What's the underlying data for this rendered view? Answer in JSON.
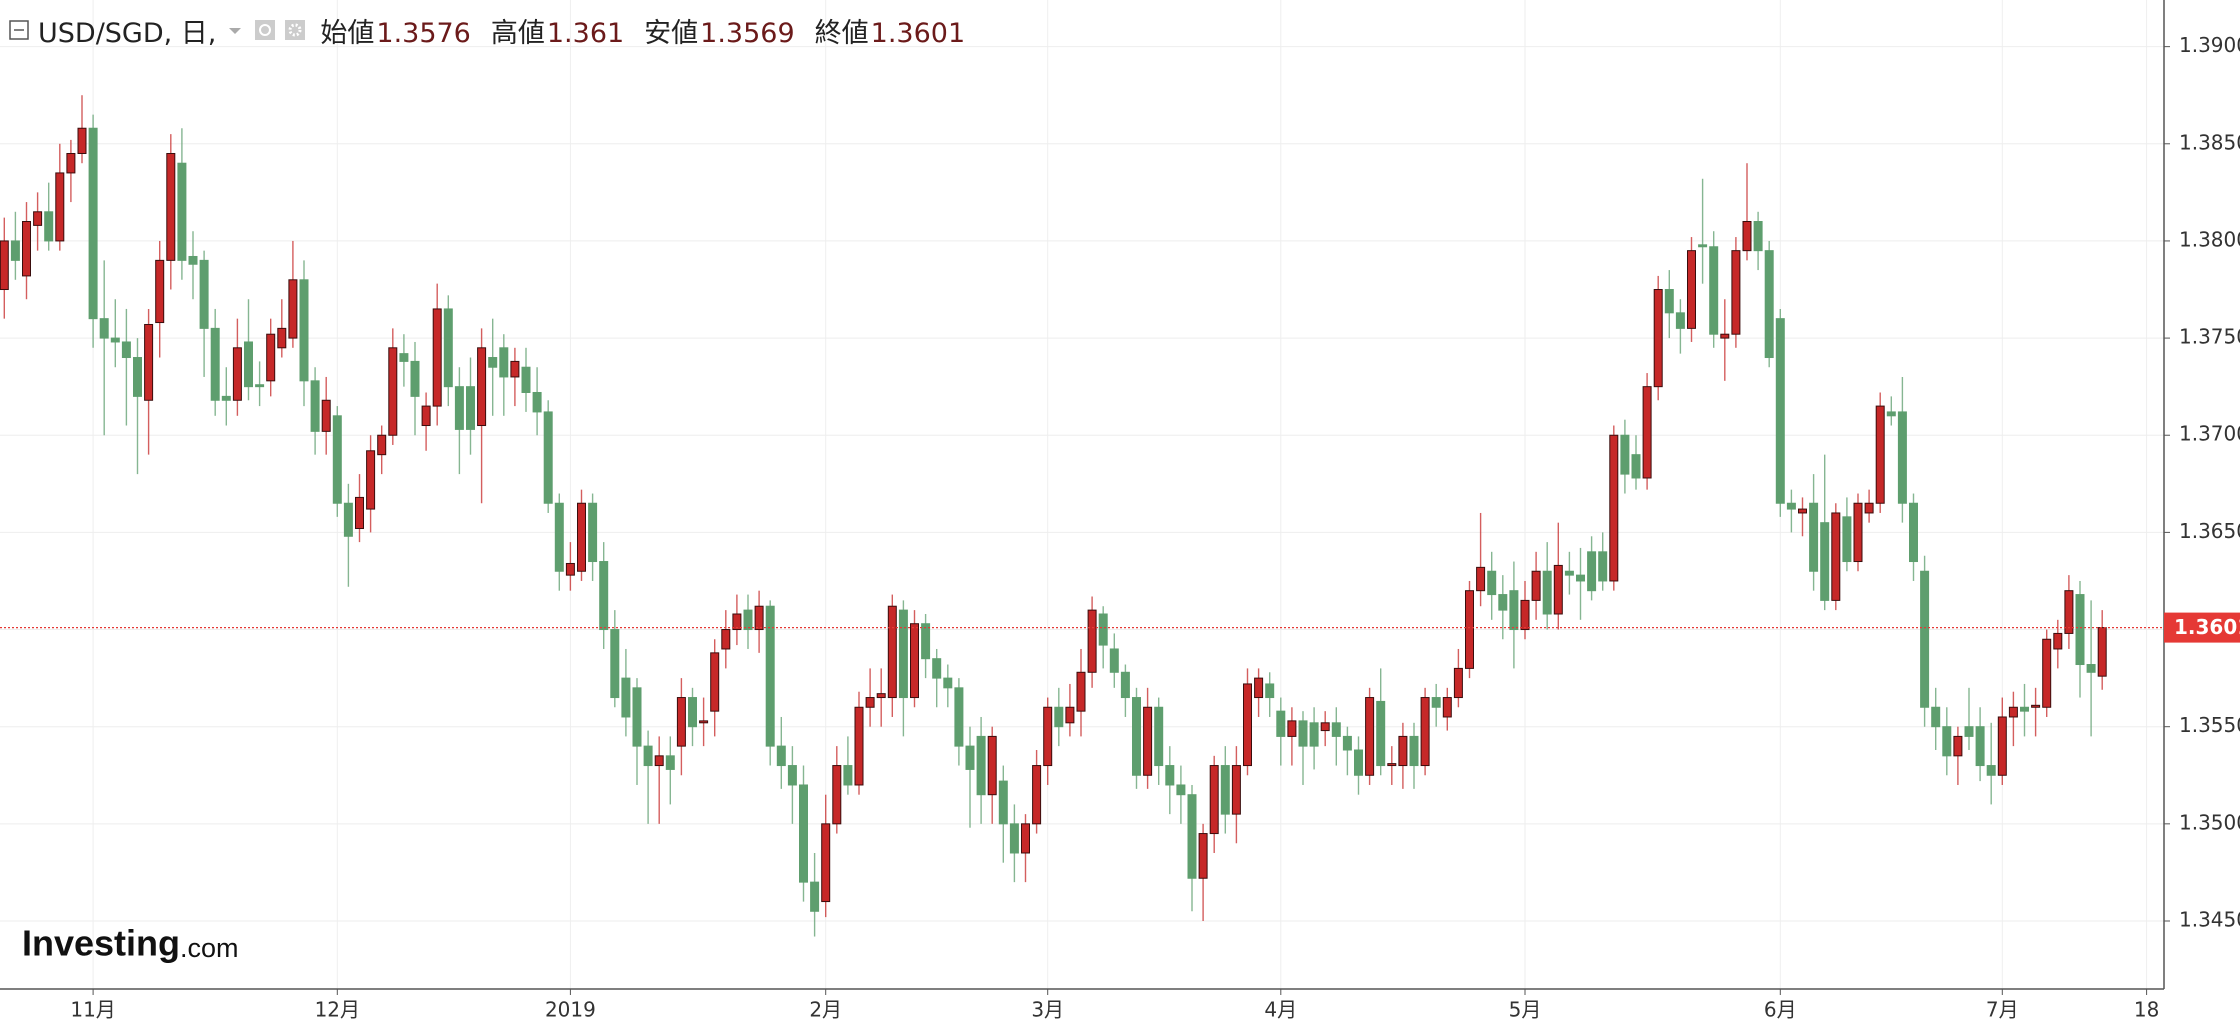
{
  "chart_data": {
    "type": "candlestick",
    "symbol": "USD/SGD, 日,",
    "ohlc_labels": [
      "始値",
      "高値",
      "安値",
      "終値"
    ],
    "last_ohlc": [
      1.3576,
      1.361,
      1.3569,
      1.3601
    ],
    "last_price": 1.3601,
    "watermark": {
      "brand": "Investing",
      "suffix": ".com"
    },
    "up_color": "#c62828",
    "down_color": "#5e9e6e",
    "price_line_color": "#e53935",
    "grid": true,
    "ylim": [
      1.3415,
      1.3924
    ],
    "yticks": [
      {
        "value": 1.345,
        "label": "1.3450"
      },
      {
        "value": 1.35,
        "label": "1.3500"
      },
      {
        "value": 1.355,
        "label": "1.3550"
      },
      {
        "value": 1.36,
        "label": "1.3600"
      },
      {
        "value": 1.365,
        "label": "1.3650"
      },
      {
        "value": 1.37,
        "label": "1.3700"
      },
      {
        "value": 1.375,
        "label": "1.3750"
      },
      {
        "value": 1.38,
        "label": "1.3800"
      },
      {
        "value": 1.385,
        "label": "1.3850"
      },
      {
        "value": 1.39,
        "label": "1.3900"
      }
    ],
    "categories": [
      null,
      null,
      null,
      null,
      null,
      null,
      null,
      null,
      "11月",
      null,
      null,
      null,
      null,
      null,
      null,
      null,
      null,
      null,
      null,
      null,
      null,
      null,
      null,
      null,
      null,
      null,
      null,
      null,
      null,
      null,
      "12月",
      null,
      null,
      null,
      null,
      null,
      null,
      null,
      null,
      null,
      null,
      null,
      null,
      null,
      null,
      null,
      null,
      null,
      null,
      null,
      null,
      "2019",
      null,
      null,
      null,
      null,
      null,
      null,
      null,
      null,
      null,
      null,
      null,
      null,
      null,
      null,
      null,
      null,
      null,
      null,
      null,
      null,
      null,
      null,
      "2月",
      null,
      null,
      null,
      null,
      null,
      null,
      null,
      null,
      null,
      null,
      null,
      null,
      null,
      null,
      null,
      null,
      null,
      null,
      null,
      "3月",
      null,
      null,
      null,
      null,
      null,
      null,
      null,
      null,
      null,
      null,
      null,
      null,
      null,
      null,
      null,
      null,
      null,
      null,
      null,
      null,
      "4月",
      null,
      null,
      null,
      null,
      null,
      null,
      null,
      null,
      null,
      null,
      null,
      null,
      null,
      null,
      null,
      null,
      null,
      null,
      null,
      null,
      null,
      "5月",
      null,
      null,
      null,
      null,
      null,
      null,
      null,
      null,
      null,
      null,
      null,
      null,
      null,
      null,
      null,
      null,
      null,
      null,
      null,
      null,
      null,
      null,
      "6月",
      null,
      null,
      null,
      null,
      null,
      null,
      null,
      null,
      null,
      null,
      null,
      null,
      null,
      null,
      null,
      null,
      null,
      null,
      null,
      "7月",
      null,
      null,
      null,
      null,
      null,
      null,
      null,
      null,
      null,
      null,
      null,
      null,
      "18"
    ],
    "ohlc": [
      [
        1.3775,
        1.3812,
        1.376,
        1.38
      ],
      [
        1.38,
        1.3815,
        1.378,
        1.379
      ],
      [
        1.3782,
        1.382,
        1.377,
        1.381
      ],
      [
        1.3808,
        1.3825,
        1.3795,
        1.3815
      ],
      [
        1.3815,
        1.383,
        1.3795,
        1.38
      ],
      [
        1.38,
        1.385,
        1.3795,
        1.3835
      ],
      [
        1.3835,
        1.3852,
        1.382,
        1.3845
      ],
      [
        1.3845,
        1.3875,
        1.384,
        1.3858
      ],
      [
        1.3858,
        1.3865,
        1.3745,
        1.376
      ],
      [
        1.376,
        1.379,
        1.37,
        1.375
      ],
      [
        1.375,
        1.377,
        1.3735,
        1.3748
      ],
      [
        1.3748,
        1.3765,
        1.3705,
        1.374
      ],
      [
        1.374,
        1.375,
        1.368,
        1.372
      ],
      [
        1.3718,
        1.3765,
        1.369,
        1.3757
      ],
      [
        1.3758,
        1.38,
        1.374,
        1.379
      ],
      [
        1.379,
        1.3855,
        1.3775,
        1.3845
      ],
      [
        1.384,
        1.3858,
        1.378,
        1.379
      ],
      [
        1.3792,
        1.3805,
        1.377,
        1.3788
      ],
      [
        1.379,
        1.3795,
        1.373,
        1.3755
      ],
      [
        1.3755,
        1.3765,
        1.371,
        1.3718
      ],
      [
        1.372,
        1.3735,
        1.3705,
        1.3718
      ],
      [
        1.3718,
        1.376,
        1.371,
        1.3745
      ],
      [
        1.3748,
        1.377,
        1.3718,
        1.3725
      ],
      [
        1.3726,
        1.3738,
        1.3715,
        1.3725
      ],
      [
        1.3728,
        1.376,
        1.372,
        1.3752
      ],
      [
        1.3745,
        1.377,
        1.374,
        1.3755
      ],
      [
        1.375,
        1.38,
        1.3745,
        1.378
      ],
      [
        1.378,
        1.379,
        1.3715,
        1.3728
      ],
      [
        1.3728,
        1.3735,
        1.369,
        1.3702
      ],
      [
        1.3702,
        1.373,
        1.369,
        1.3718
      ],
      [
        1.371,
        1.3715,
        1.3658,
        1.3665
      ],
      [
        1.3665,
        1.3675,
        1.3622,
        1.3648
      ],
      [
        1.3652,
        1.368,
        1.3645,
        1.3668
      ],
      [
        1.3662,
        1.37,
        1.365,
        1.3692
      ],
      [
        1.369,
        1.3705,
        1.368,
        1.37
      ],
      [
        1.37,
        1.3755,
        1.3695,
        1.3745
      ],
      [
        1.3742,
        1.3752,
        1.3725,
        1.3738
      ],
      [
        1.3738,
        1.3748,
        1.37,
        1.372
      ],
      [
        1.3705,
        1.3722,
        1.3692,
        1.3715
      ],
      [
        1.3715,
        1.3778,
        1.3705,
        1.3765
      ],
      [
        1.3765,
        1.3772,
        1.3715,
        1.3725
      ],
      [
        1.3725,
        1.3735,
        1.368,
        1.3703
      ],
      [
        1.3725,
        1.374,
        1.369,
        1.3703
      ],
      [
        1.3705,
        1.3755,
        1.3665,
        1.3745
      ],
      [
        1.374,
        1.376,
        1.371,
        1.3735
      ],
      [
        1.3745,
        1.3752,
        1.371,
        1.373
      ],
      [
        1.373,
        1.3745,
        1.3715,
        1.3738
      ],
      [
        1.3735,
        1.3745,
        1.3712,
        1.3722
      ],
      [
        1.3722,
        1.3735,
        1.37,
        1.3712
      ],
      [
        1.3712,
        1.3718,
        1.366,
        1.3665
      ],
      [
        1.3665,
        1.367,
        1.362,
        1.363
      ],
      [
        1.3628,
        1.3645,
        1.362,
        1.3634
      ],
      [
        1.363,
        1.3672,
        1.3625,
        1.3665
      ],
      [
        1.3665,
        1.367,
        1.3625,
        1.3635
      ],
      [
        1.3635,
        1.3645,
        1.359,
        1.36
      ],
      [
        1.36,
        1.361,
        1.356,
        1.3565
      ],
      [
        1.3575,
        1.359,
        1.3545,
        1.3555
      ],
      [
        1.357,
        1.3575,
        1.352,
        1.354
      ],
      [
        1.354,
        1.3548,
        1.35,
        1.353
      ],
      [
        1.353,
        1.3545,
        1.35,
        1.3535
      ],
      [
        1.3535,
        1.3545,
        1.351,
        1.3528
      ],
      [
        1.354,
        1.3575,
        1.3525,
        1.3565
      ],
      [
        1.3565,
        1.357,
        1.354,
        1.355
      ],
      [
        1.3552,
        1.3565,
        1.354,
        1.3553
      ],
      [
        1.3558,
        1.3595,
        1.3545,
        1.3588
      ],
      [
        1.359,
        1.361,
        1.358,
        1.36
      ],
      [
        1.36,
        1.3618,
        1.3592,
        1.3608
      ],
      [
        1.361,
        1.3618,
        1.359,
        1.36
      ],
      [
        1.36,
        1.362,
        1.3588,
        1.3612
      ],
      [
        1.3612,
        1.3615,
        1.353,
        1.354
      ],
      [
        1.354,
        1.3555,
        1.3518,
        1.353
      ],
      [
        1.353,
        1.354,
        1.35,
        1.352
      ],
      [
        1.352,
        1.353,
        1.346,
        1.347
      ],
      [
        1.347,
        1.3485,
        1.3442,
        1.3455
      ],
      [
        1.346,
        1.3515,
        1.3452,
        1.35
      ],
      [
        1.35,
        1.354,
        1.3495,
        1.353
      ],
      [
        1.353,
        1.3545,
        1.3515,
        1.352
      ],
      [
        1.352,
        1.3568,
        1.3515,
        1.356
      ],
      [
        1.356,
        1.358,
        1.355,
        1.3565
      ],
      [
        1.3565,
        1.358,
        1.355,
        1.3567
      ],
      [
        1.3565,
        1.3618,
        1.3555,
        1.3612
      ],
      [
        1.361,
        1.3615,
        1.3545,
        1.3565
      ],
      [
        1.3565,
        1.361,
        1.356,
        1.3603
      ],
      [
        1.3603,
        1.3608,
        1.3575,
        1.3585
      ],
      [
        1.3585,
        1.359,
        1.356,
        1.3575
      ],
      [
        1.3575,
        1.3582,
        1.356,
        1.357
      ],
      [
        1.357,
        1.3575,
        1.353,
        1.354
      ],
      [
        1.354,
        1.355,
        1.3498,
        1.3528
      ],
      [
        1.3545,
        1.3555,
        1.35,
        1.3515
      ],
      [
        1.3515,
        1.355,
        1.35,
        1.3545
      ],
      [
        1.3522,
        1.353,
        1.348,
        1.35
      ],
      [
        1.35,
        1.351,
        1.347,
        1.3485
      ],
      [
        1.3485,
        1.3505,
        1.347,
        1.35
      ],
      [
        1.35,
        1.3538,
        1.3495,
        1.353
      ],
      [
        1.353,
        1.3565,
        1.352,
        1.356
      ],
      [
        1.356,
        1.357,
        1.354,
        1.355
      ],
      [
        1.3552,
        1.3572,
        1.3545,
        1.356
      ],
      [
        1.3558,
        1.359,
        1.3545,
        1.3578
      ],
      [
        1.3578,
        1.3617,
        1.357,
        1.361
      ],
      [
        1.3608,
        1.3612,
        1.358,
        1.3592
      ],
      [
        1.359,
        1.3598,
        1.357,
        1.3578
      ],
      [
        1.3578,
        1.3582,
        1.3555,
        1.3565
      ],
      [
        1.3565,
        1.357,
        1.3518,
        1.3525
      ],
      [
        1.3525,
        1.357,
        1.3518,
        1.356
      ],
      [
        1.356,
        1.3565,
        1.352,
        1.353
      ],
      [
        1.353,
        1.354,
        1.3505,
        1.352
      ],
      [
        1.352,
        1.353,
        1.35,
        1.3515
      ],
      [
        1.3515,
        1.352,
        1.3455,
        1.3472
      ],
      [
        1.3472,
        1.35,
        1.345,
        1.3495
      ],
      [
        1.3495,
        1.3535,
        1.3485,
        1.353
      ],
      [
        1.353,
        1.354,
        1.3495,
        1.3505
      ],
      [
        1.3505,
        1.354,
        1.349,
        1.353
      ],
      [
        1.353,
        1.358,
        1.3525,
        1.3572
      ],
      [
        1.3565,
        1.358,
        1.3555,
        1.3575
      ],
      [
        1.3572,
        1.3578,
        1.3555,
        1.3565
      ],
      [
        1.3558,
        1.3565,
        1.353,
        1.3545
      ],
      [
        1.3545,
        1.356,
        1.353,
        1.3553
      ],
      [
        1.3553,
        1.3558,
        1.352,
        1.354
      ],
      [
        1.3552,
        1.356,
        1.3528,
        1.354
      ],
      [
        1.3548,
        1.3558,
        1.354,
        1.3552
      ],
      [
        1.3552,
        1.356,
        1.353,
        1.3545
      ],
      [
        1.3545,
        1.355,
        1.3525,
        1.3538
      ],
      [
        1.3538,
        1.3545,
        1.3515,
        1.3525
      ],
      [
        1.3525,
        1.357,
        1.352,
        1.3565
      ],
      [
        1.3563,
        1.358,
        1.3525,
        1.353
      ],
      [
        1.353,
        1.354,
        1.352,
        1.3531
      ],
      [
        1.353,
        1.3552,
        1.3518,
        1.3545
      ],
      [
        1.3545,
        1.3552,
        1.3518,
        1.353
      ],
      [
        1.353,
        1.357,
        1.3525,
        1.3565
      ],
      [
        1.3565,
        1.3572,
        1.355,
        1.356
      ],
      [
        1.3555,
        1.357,
        1.3548,
        1.3565
      ],
      [
        1.3565,
        1.359,
        1.356,
        1.358
      ],
      [
        1.358,
        1.3625,
        1.3575,
        1.362
      ],
      [
        1.362,
        1.366,
        1.3612,
        1.3632
      ],
      [
        1.363,
        1.364,
        1.3605,
        1.3618
      ],
      [
        1.3618,
        1.3628,
        1.3595,
        1.361
      ],
      [
        1.362,
        1.3635,
        1.358,
        1.36
      ],
      [
        1.36,
        1.3625,
        1.3595,
        1.3615
      ],
      [
        1.3615,
        1.364,
        1.3605,
        1.363
      ],
      [
        1.363,
        1.3645,
        1.36,
        1.3608
      ],
      [
        1.3608,
        1.3655,
        1.36,
        1.3633
      ],
      [
        1.363,
        1.364,
        1.3618,
        1.3628
      ],
      [
        1.3628,
        1.3642,
        1.3605,
        1.3625
      ],
      [
        1.364,
        1.3648,
        1.3615,
        1.362
      ],
      [
        1.364,
        1.365,
        1.362,
        1.3625
      ],
      [
        1.3625,
        1.3705,
        1.362,
        1.37
      ],
      [
        1.37,
        1.3708,
        1.367,
        1.368
      ],
      [
        1.369,
        1.37,
        1.3672,
        1.3678
      ],
      [
        1.3678,
        1.3732,
        1.3672,
        1.3725
      ],
      [
        1.3725,
        1.3782,
        1.3718,
        1.3775
      ],
      [
        1.3775,
        1.3785,
        1.375,
        1.3763
      ],
      [
        1.3763,
        1.377,
        1.3742,
        1.3755
      ],
      [
        1.3755,
        1.3802,
        1.3748,
        1.3795
      ],
      [
        1.3798,
        1.3832,
        1.3778,
        1.3797
      ],
      [
        1.3797,
        1.3805,
        1.3745,
        1.3752
      ],
      [
        1.375,
        1.377,
        1.3728,
        1.3752
      ],
      [
        1.3752,
        1.3802,
        1.3745,
        1.3795
      ],
      [
        1.3795,
        1.384,
        1.379,
        1.381
      ],
      [
        1.381,
        1.3815,
        1.3785,
        1.3795
      ],
      [
        1.3795,
        1.38,
        1.3735,
        1.374
      ],
      [
        1.376,
        1.3765,
        1.3658,
        1.3665
      ],
      [
        1.3665,
        1.3672,
        1.365,
        1.3662
      ],
      [
        1.366,
        1.3668,
        1.3648,
        1.3662
      ],
      [
        1.3665,
        1.368,
        1.362,
        1.363
      ],
      [
        1.3655,
        1.369,
        1.361,
        1.3615
      ],
      [
        1.3615,
        1.3665,
        1.361,
        1.366
      ],
      [
        1.3658,
        1.3668,
        1.363,
        1.3635
      ],
      [
        1.3635,
        1.367,
        1.363,
        1.3665
      ],
      [
        1.366,
        1.3672,
        1.3655,
        1.3665
      ],
      [
        1.3665,
        1.3722,
        1.366,
        1.3715
      ],
      [
        1.3712,
        1.372,
        1.3705,
        1.371
      ],
      [
        1.3712,
        1.373,
        1.3655,
        1.3665
      ],
      [
        1.3665,
        1.367,
        1.3625,
        1.3635
      ],
      [
        1.363,
        1.3638,
        1.355,
        1.356
      ],
      [
        1.356,
        1.357,
        1.3538,
        1.355
      ],
      [
        1.355,
        1.356,
        1.3525,
        1.3535
      ],
      [
        1.3535,
        1.355,
        1.352,
        1.3545
      ],
      [
        1.355,
        1.357,
        1.3538,
        1.3545
      ],
      [
        1.355,
        1.356,
        1.3522,
        1.353
      ],
      [
        1.353,
        1.3552,
        1.351,
        1.3525
      ],
      [
        1.3525,
        1.3565,
        1.352,
        1.3555
      ],
      [
        1.3555,
        1.3568,
        1.354,
        1.356
      ],
      [
        1.356,
        1.3572,
        1.3545,
        1.3558
      ],
      [
        1.356,
        1.357,
        1.3545,
        1.3561
      ],
      [
        1.356,
        1.36,
        1.3555,
        1.3595
      ],
      [
        1.359,
        1.3605,
        1.358,
        1.3598
      ],
      [
        1.3598,
        1.3628,
        1.359,
        1.362
      ],
      [
        1.3618,
        1.3625,
        1.3565,
        1.3582
      ],
      [
        1.3582,
        1.3615,
        1.3545,
        1.3578
      ],
      [
        1.3576,
        1.361,
        1.3569,
        1.3601
      ],
      null,
      null,
      null,
      null
    ]
  }
}
